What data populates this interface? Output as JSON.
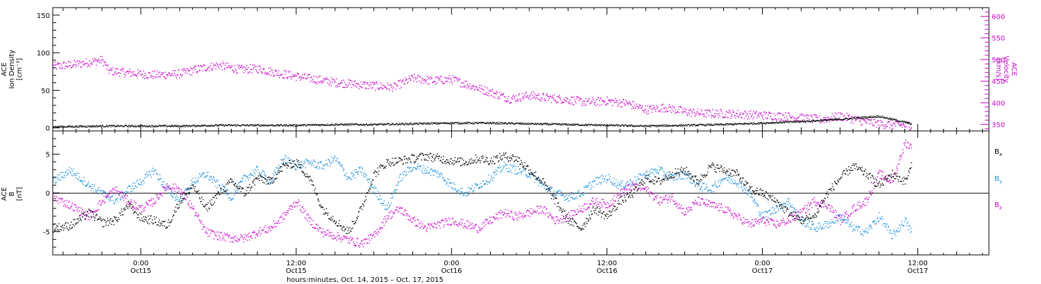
{
  "colors": {
    "black": "#000000",
    "magenta": "#cc00cc",
    "blue": "#1a8fdd"
  },
  "xaxis": {
    "title": "hours:minutes, Oct. 14, 2015 – Oct. 17, 2015",
    "range_hours": [
      -6.8,
      65.5
    ],
    "ticks": [
      {
        "h": 0,
        "line1": "0:00",
        "line2": "Oct15"
      },
      {
        "h": 12,
        "line1": "12:00",
        "line2": "Oct15"
      },
      {
        "h": 24,
        "line1": "0:00",
        "line2": "Oct16"
      },
      {
        "h": 36,
        "line1": "12:00",
        "line2": "Oct16"
      },
      {
        "h": 48,
        "line1": "0:00",
        "line2": "Oct17"
      },
      {
        "h": 60,
        "line1": "12:00",
        "line2": "Oct17"
      }
    ]
  },
  "panel1": {
    "left_label": {
      "line1": "ACE",
      "line2": "Ion Density",
      "line3": "[cm⁻³]"
    },
    "right_label": {
      "line1": "ACE",
      "line2": "Velocity",
      "line3": "[km/s]"
    },
    "left_ticks": [
      "0",
      "50",
      "100",
      "150"
    ],
    "right_ticks": [
      "350",
      "400",
      "450",
      "500",
      "550",
      "600"
    ]
  },
  "panel2": {
    "left_label": {
      "line1": "ACE",
      "line2": "B",
      "line3": "[nT]"
    },
    "ticks": [
      "-5",
      "0",
      "5"
    ],
    "legend": [
      {
        "name": "B",
        "sub": "x",
        "color": "#000000"
      },
      {
        "name": "B",
        "sub": "y",
        "color": "#1a8fdd"
      },
      {
        "name": "B",
        "sub": "z",
        "color": "#cc00cc"
      }
    ]
  },
  "chart_data": [
    {
      "type": "scatter",
      "title": "",
      "xlabel": "hours:minutes, Oct. 14, 2015 – Oct. 17, 2015",
      "ylabel": "ACE Ion Density [cm⁻³]",
      "y2label": "ACE Velocity [km/s]",
      "xlim": [
        -6.8,
        65.5
      ],
      "ylim": [
        -4,
        160
      ],
      "y2lim": [
        335,
        620
      ],
      "series": [
        {
          "name": "Ion Density",
          "axis": "left",
          "color": "#000000",
          "x": [
            -6.8,
            -3,
            0,
            3,
            6,
            9,
            12,
            15,
            18,
            21,
            24,
            27,
            30,
            33,
            36,
            39,
            42,
            45,
            48,
            51,
            54,
            57,
            59.5
          ],
          "y": [
            2,
            3,
            3,
            3,
            4,
            4,
            4,
            5,
            5,
            6,
            7,
            7,
            6,
            5,
            4,
            3,
            4,
            5,
            7,
            9,
            12,
            16,
            6
          ]
        },
        {
          "name": "Velocity",
          "axis": "right",
          "color": "#cc00cc",
          "x": [
            -6.8,
            -5,
            -3,
            -2.5,
            -1,
            1,
            3,
            4.5,
            6,
            7.5,
            9,
            10.5,
            12,
            13.5,
            15,
            16.5,
            18,
            19.5,
            21,
            22.5,
            24,
            25.5,
            27,
            28.5,
            30,
            31.5,
            33,
            34.5,
            36,
            37.5,
            39,
            40.5,
            42,
            43.5,
            45,
            46.5,
            48,
            49.5,
            51,
            52.5,
            54,
            55.5,
            57,
            58.5,
            59.5
          ],
          "y": [
            485,
            490,
            500,
            475,
            470,
            465,
            468,
            480,
            488,
            478,
            480,
            470,
            462,
            455,
            448,
            444,
            440,
            437,
            458,
            452,
            455,
            440,
            425,
            410,
            418,
            412,
            408,
            402,
            405,
            400,
            385,
            390,
            380,
            376,
            376,
            374,
            372,
            370,
            366,
            362,
            370,
            360,
            352,
            350,
            348
          ]
        }
      ]
    },
    {
      "type": "scatter",
      "title": "",
      "xlabel": "hours:minutes, Oct. 14, 2015 – Oct. 17, 2015",
      "ylabel": "ACE B [nT]",
      "xlim": [
        -6.8,
        65.5
      ],
      "ylim": [
        -8,
        8
      ],
      "series": [
        {
          "name": "Bx",
          "color": "#000000",
          "x": [
            -6.8,
            -5.5,
            -4,
            -3,
            -2,
            -1,
            0,
            1,
            2,
            3,
            4,
            5,
            6,
            7,
            8,
            9,
            10,
            11,
            12,
            13,
            14,
            15,
            16,
            17,
            18,
            19,
            20,
            21,
            22,
            23,
            24,
            25,
            26,
            27,
            28,
            29,
            30,
            31,
            32,
            33,
            34,
            35,
            36,
            37,
            38,
            39,
            40,
            41,
            42,
            43,
            44,
            45,
            46,
            47,
            48,
            49,
            50,
            51,
            52,
            53,
            54,
            55,
            56,
            57,
            58,
            59,
            59.5
          ],
          "y": [
            -4.5,
            -4.2,
            -2.5,
            -3.8,
            -3.5,
            -1.5,
            -3.2,
            -3.5,
            -4.2,
            -1,
            1,
            -2,
            0,
            1.5,
            0,
            2,
            1.5,
            3.5,
            4,
            2,
            -2,
            -3.5,
            -5,
            -2,
            2.5,
            4,
            4.2,
            4.5,
            4.8,
            4.5,
            4.2,
            4,
            4.5,
            4.2,
            4.8,
            4.5,
            3,
            1.5,
            -1,
            -3.5,
            -4.5,
            -2,
            -3,
            -1,
            0,
            2,
            1.5,
            2.5,
            3,
            1.5,
            3.5,
            3,
            2.5,
            0.5,
            0,
            -1,
            -2.5,
            -3.5,
            -3,
            0,
            2,
            3.5,
            2.5,
            1,
            2.5,
            1.5,
            3.5
          ]
        },
        {
          "name": "By",
          "color": "#1a8fdd",
          "x": [
            -6.8,
            -5.5,
            -4,
            -3,
            -2,
            -1,
            0,
            1,
            2,
            3,
            4,
            5,
            6,
            7,
            8,
            9,
            10,
            11,
            12,
            13,
            14,
            15,
            16,
            17,
            18,
            19,
            20,
            21,
            22,
            23,
            24,
            25,
            26,
            27,
            28,
            29,
            30,
            31,
            32,
            33,
            34,
            35,
            36,
            37,
            38,
            39,
            40,
            41,
            42,
            43,
            44,
            45,
            46,
            47,
            48,
            49,
            50,
            51,
            52,
            53,
            54,
            55,
            56,
            57,
            58,
            59,
            59.5
          ],
          "y": [
            1.5,
            3,
            1,
            0,
            -1,
            0.5,
            1.5,
            3,
            0.5,
            -1,
            1.5,
            2.5,
            1,
            -0.5,
            2,
            3,
            1.5,
            4.5,
            3.5,
            4,
            3.5,
            4.5,
            2,
            3,
            0.5,
            -2,
            2,
            3.5,
            3,
            2.5,
            1,
            0,
            1,
            2,
            3.5,
            3,
            2.5,
            1,
            0,
            -0.5,
            0,
            1.5,
            2,
            1,
            1.5,
            2.5,
            3,
            2,
            2.5,
            1,
            0.5,
            2,
            1.5,
            0,
            -3,
            -2,
            -1,
            -3.5,
            -4.5,
            -4,
            -3,
            -4.5,
            -5,
            -3,
            -5.5,
            -3.5,
            -5
          ]
        },
        {
          "name": "Bz",
          "color": "#cc00cc",
          "x": [
            -6.8,
            -5.5,
            -4,
            -3,
            -2,
            -1,
            0,
            1,
            2,
            3,
            4,
            5,
            6,
            7,
            8,
            9,
            10,
            11,
            12,
            13,
            14,
            15,
            16,
            17,
            18,
            19,
            20,
            21,
            22,
            23,
            24,
            25,
            26,
            27,
            28,
            29,
            30,
            31,
            32,
            33,
            34,
            35,
            36,
            37,
            38,
            39,
            40,
            41,
            42,
            43,
            44,
            45,
            46,
            47,
            48,
            49,
            50,
            51,
            52,
            53,
            54,
            55,
            56,
            57,
            58,
            59,
            59.5
          ],
          "y": [
            -0.5,
            -1.5,
            -3,
            -1,
            0.5,
            -1,
            -2,
            -1,
            1,
            0.5,
            -2,
            -5,
            -5.5,
            -5.8,
            -5.8,
            -5,
            -4.5,
            -3,
            -1,
            -3.5,
            -5,
            -5.5,
            -6,
            -6.5,
            -5.5,
            -3,
            -2,
            -3.5,
            -4.5,
            -4,
            -3.5,
            -4,
            -4.5,
            -3.5,
            -2.5,
            -3,
            -2.5,
            -2,
            -3.5,
            -3,
            -2,
            -1,
            -1.5,
            0,
            1,
            0.5,
            -1,
            -0.5,
            -2.5,
            -1,
            -1.5,
            -2,
            -3,
            -4,
            -3.5,
            -4,
            -3.5,
            -2.5,
            -1,
            -1.5,
            -3.5,
            -2,
            -1,
            2.5,
            1.5,
            6.5,
            6
          ]
        }
      ]
    }
  ]
}
